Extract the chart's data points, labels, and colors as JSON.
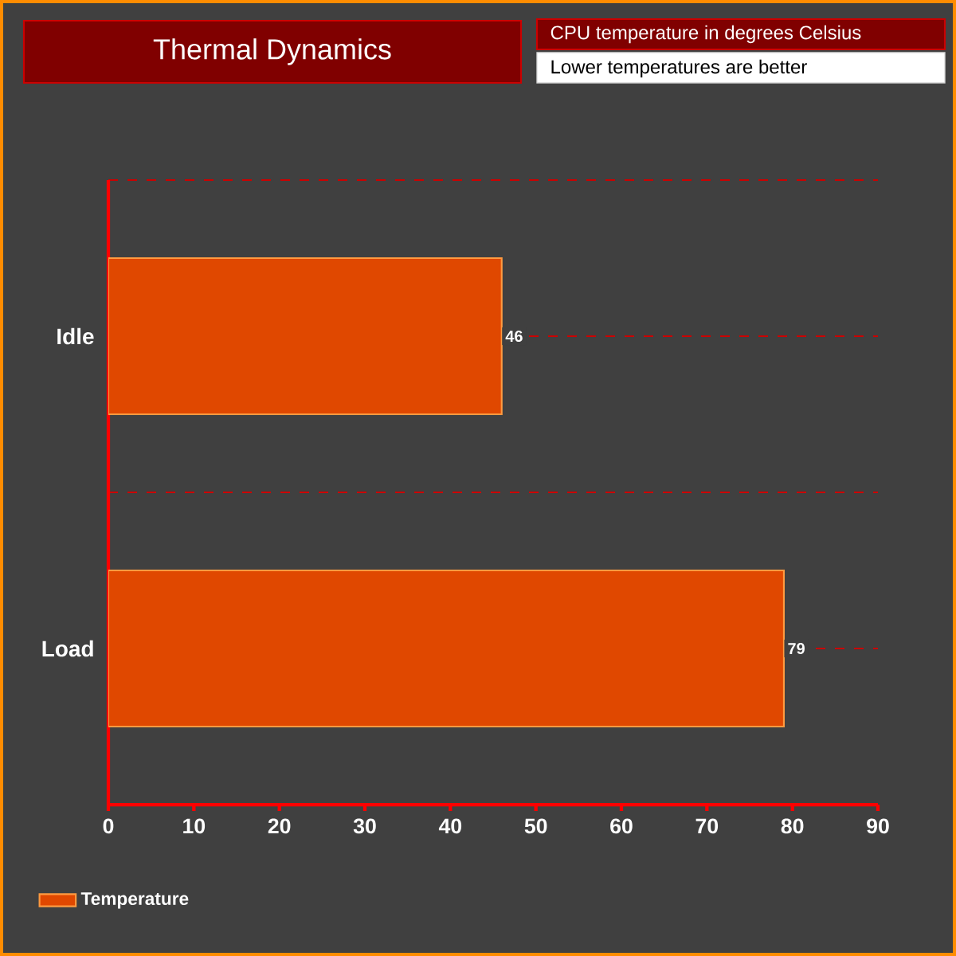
{
  "chart_data": {
    "type": "bar",
    "orientation": "horizontal",
    "title": "Thermal Dynamics",
    "subtitle": "CPU temperature in degrees Celsius",
    "annotations": [
      "Lower temperatures are better"
    ],
    "categories": [
      "Idle",
      "Load"
    ],
    "series": [
      {
        "name": "Temperature",
        "color": "#e04800",
        "values": [
          46,
          79
        ]
      }
    ],
    "xlim": [
      0,
      90
    ],
    "xticks": [
      0,
      10,
      20,
      30,
      40,
      50,
      60,
      70,
      80,
      90
    ],
    "grid": "y",
    "legend": "bottom left",
    "data_labels": true
  }
}
